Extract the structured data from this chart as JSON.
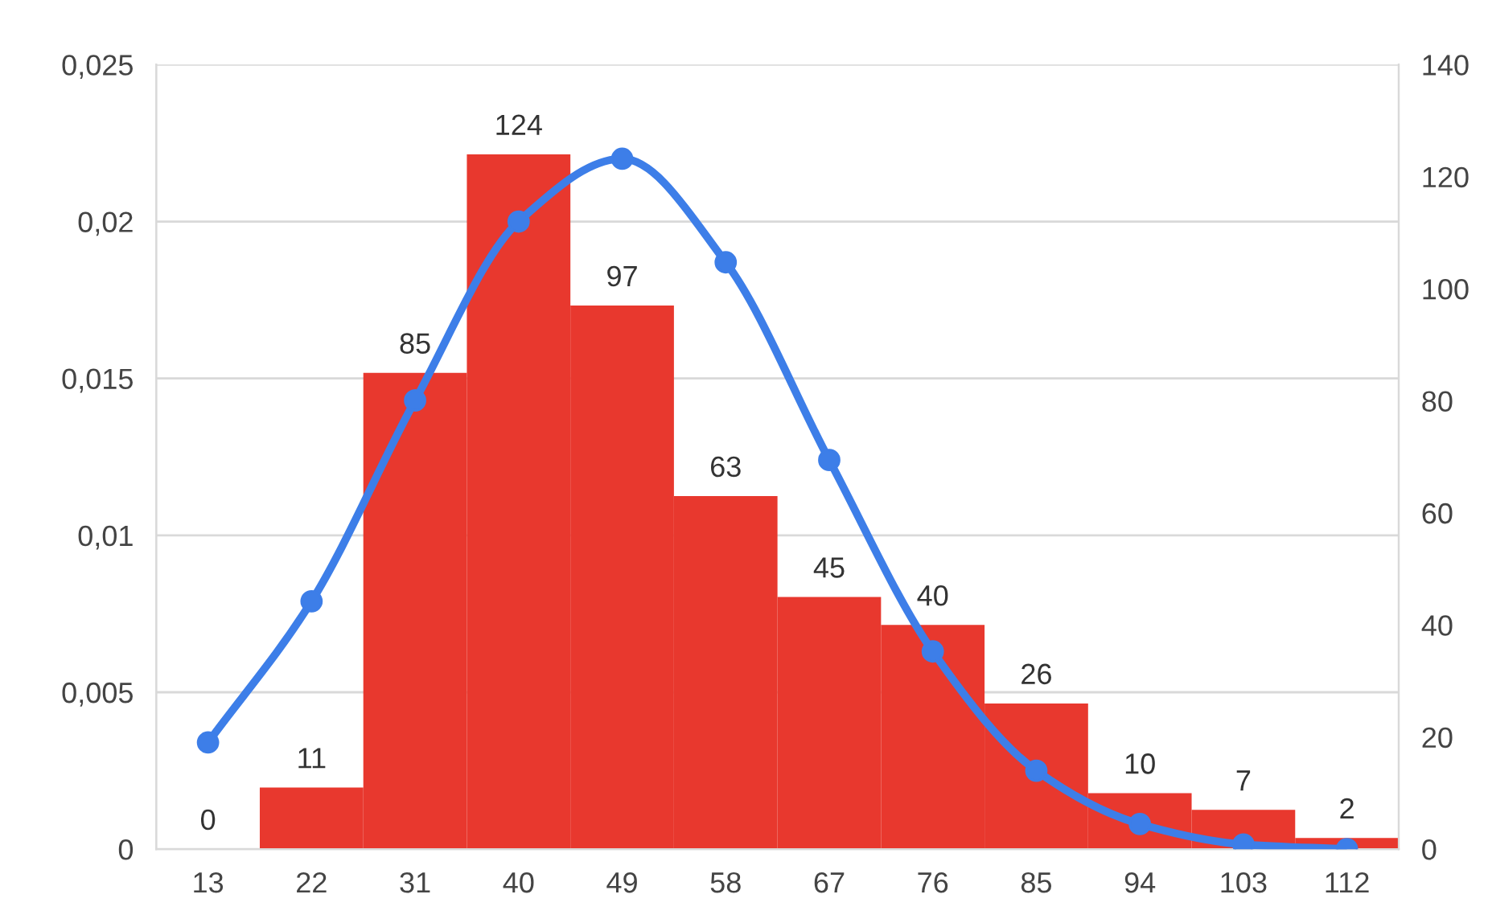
{
  "chart_data": {
    "type": "bar",
    "categories": [
      "13",
      "22",
      "31",
      "40",
      "49",
      "58",
      "67",
      "76",
      "85",
      "94",
      "103",
      "112"
    ],
    "series": [
      {
        "axis": "y2",
        "color": "#e8382e",
        "values": [
          0,
          11,
          85,
          124,
          97,
          63,
          45,
          40,
          26,
          10,
          7,
          2
        ],
        "value_labels": [
          "0",
          "11",
          "85",
          "124",
          "97",
          "63",
          "45",
          "40",
          "26",
          "10",
          "7",
          "2"
        ]
      },
      {
        "type": "line",
        "axis": "y",
        "color": "#3d7ee8",
        "marker": "circle",
        "values": [
          0.0034,
          0.0079,
          0.0143,
          0.02,
          0.022,
          0.0187,
          0.0124,
          0.0063,
          0.0025,
          0.0008,
          0.00015,
          0.0
        ]
      }
    ],
    "ylim": [
      0,
      0.025
    ],
    "yticks": [
      {
        "value": 0,
        "label": "0"
      },
      {
        "value": 0.005,
        "label": "0,005"
      },
      {
        "value": 0.01,
        "label": "0,01"
      },
      {
        "value": 0.015,
        "label": "0,015"
      },
      {
        "value": 0.02,
        "label": "0,02"
      },
      {
        "value": 0.025,
        "label": "0,025"
      }
    ],
    "y2lim": [
      0,
      140
    ],
    "y2ticks": [
      0,
      20,
      40,
      60,
      80,
      100,
      120,
      140
    ],
    "grid": "y",
    "legend": false
  }
}
